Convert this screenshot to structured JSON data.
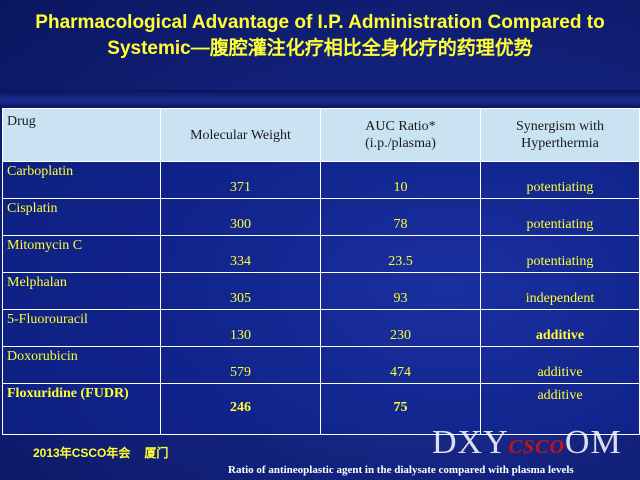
{
  "title": {
    "line1": "Pharmacological Advantage of I.P. Administration Compared to",
    "line2": "Systemic—腹腔灌注化疗相比全身化疗的药理优势"
  },
  "table": {
    "headers": {
      "drug": "Drug",
      "mw": "Molecular Weight",
      "auc_line1": "AUC Ratio*",
      "auc_line2": "(i.p./plasma)",
      "syn_line1": "Synergism with",
      "syn_line2": "Hyperthermia"
    },
    "rows": [
      {
        "drug": "Carboplatin",
        "mw": "371",
        "auc": "10",
        "syn": "potentiating"
      },
      {
        "drug": "Cisplatin",
        "mw": "300",
        "auc": "78",
        "syn": "potentiating"
      },
      {
        "drug": "Mitomycin C",
        "mw": "334",
        "auc": "23.5",
        "syn": "potentiating"
      },
      {
        "drug": "Melphalan",
        "mw": "305",
        "auc": "93",
        "syn": "independent"
      },
      {
        "drug": "5-Fluorouracil",
        "mw": "130",
        "auc": "230",
        "syn": "additive"
      },
      {
        "drug": "Doxorubicin",
        "mw": "579",
        "auc": "474",
        "syn": "additive"
      },
      {
        "drug": "Floxuridine (FUDR)",
        "mw": "246",
        "auc": "75",
        "syn": "additive"
      }
    ]
  },
  "footer": {
    "conference": "2013年CSCO年会",
    "city": "厦门",
    "footnote": "Ratio of antineoplastic agent in the dialysate compared with plasma levels"
  },
  "watermark": {
    "left": "DXY",
    "middle": "CSCO",
    "right": "OM"
  },
  "colors": {
    "title": "#ffff33",
    "header_bg": "#c9e3f2",
    "cell_text": "#ffff33",
    "background": "#13237e"
  }
}
